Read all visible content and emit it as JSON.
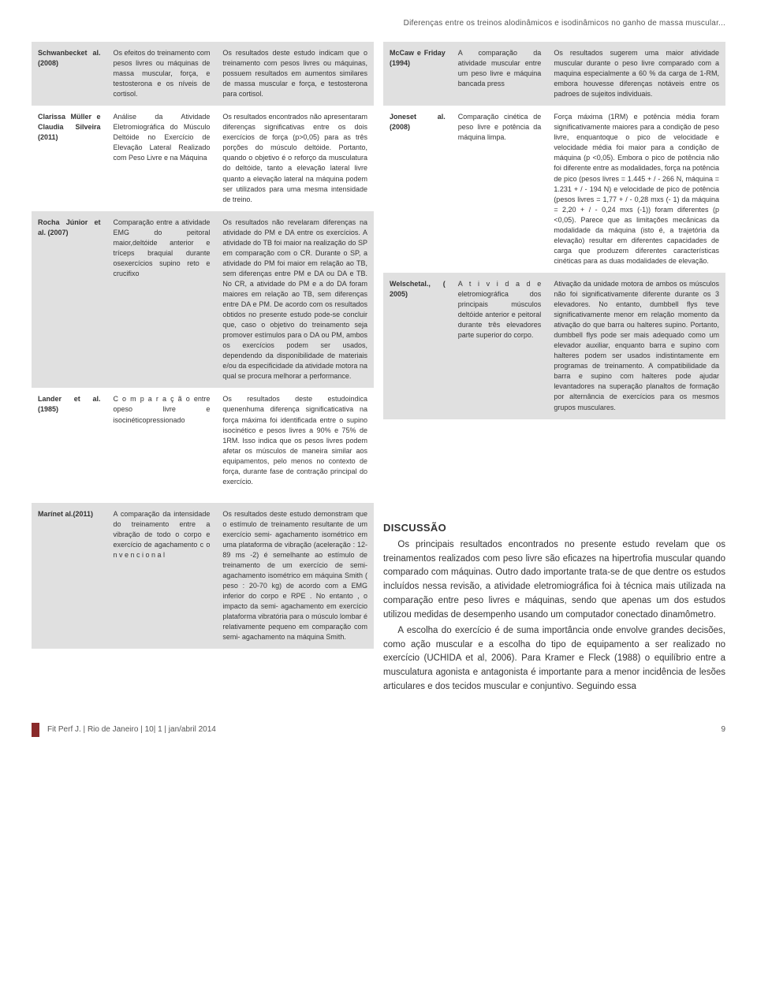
{
  "header": {
    "running_title": "Diferenças entre os treinos alodinâmicos e isodinâmicos no ganho de massa muscular..."
  },
  "left_table": [
    {
      "band": true,
      "author": "Schwanbecket al. (2008)",
      "method": "Os efeitos do treinamento com pesos livres ou máquinas de massa muscular, força, e testosterona e os níveis de cortisol.",
      "result": "Os resultados deste estudo indicam que o treinamento com pesos livres ou máquinas, possuem resultados em aumentos similares de massa muscular e força, e testosterona para cortisol."
    },
    {
      "band": false,
      "author": "Clarissa Müller e Claudia Silveira (2011)",
      "method": "Análise da Atividade Eletromiográfica do Músculo Deltóide no Exercício de Elevação Lateral Realizado com Peso Livre e na Máquina",
      "result": "Os resultados encontrados não apresentaram diferenças significativas entre os dois exercícios de força (p>0,05) para as três porções do músculo deltóide. Portanto, quando o objetivo é o reforço da musculatura do deltóide, tanto a elevação lateral livre quanto a elevação lateral na máquina podem ser utilizados para uma mesma intensidade de treino."
    },
    {
      "band": true,
      "author": "Rocha Júnior et al. (2007)",
      "method": "Comparação entre a atividade EMG do peitoral maior,deltóide anterior e tríceps braquial durante osexercícios supino reto e crucifixo",
      "result": "Os resultados não revelaram diferenças na atividade do PM e DA entre os exercícios. A atividade do TB foi maior na realização do SP em comparação com o CR. Durante o SP, a atividade do PM foi maior em relação ao TB, sem diferenças entre PM e DA ou DA e TB. No CR, a atividade do PM e a do DA foram maiores em relação ao TB, sem diferenças entre DA e PM. De acordo com os resultados obtidos no presente estudo pode-se concluir que, caso o objetivo do treinamento seja promover estímulos para o DA ou PM, ambos os exercícios podem ser usados, dependendo da disponibilidade de materiais e/ou da especificidade da atividade motora na qual se procura melhorar a performance."
    },
    {
      "band": false,
      "author": "Lander et al. (1985)",
      "method": "C o m p a r a ç ã o entre opeso livre e isocinéticopressionado",
      "result": "Os resultados deste estudoindica quenenhuma diferença significaticativa na força máxima foi identificada entre o supino isocinético e pesos livres a 90% e 75% de 1RM. Isso indica que os pesos livres podem afetar os músculos de maneira similar aos equipamentos, pelo menos no contexto de força, durante fase de contração principal do exercício."
    }
  ],
  "right_table": [
    {
      "band": true,
      "author": "McCaw e Friday (1994)",
      "method": "A comparação da atividade muscular entre um peso livre e máquina bancada press",
      "result": "Os resultados sugerem uma maior atividade muscular durante o peso livre comparado com a maquina especialmente a 60 % da carga de 1-RM, embora houvesse diferenças notáveis entre os padroes de sujeitos individuais."
    },
    {
      "band": false,
      "author": "Joneset al. (2008)",
      "method": "Comparação cinética de peso livre e potência da máquina limpa.",
      "result": "Força máxima (1RM) e potência média foram significativamente maiores para a condição de peso livre, enquantoque o pico de velocidade e velocidade média foi maior para a condição de máquina (p <0,05). Embora o pico de potência não foi diferente entre as modalidades, força na potência de pico (pesos livres = 1.445 + / - 266 N, máquina = 1.231 + / - 194 N) e velocidade de pico de potência (pesos livres = 1,77 + / - 0,28 mxs (- 1) da máquina = 2,20 + / - 0,24 mxs (-1)) foram diferentes (p <0,05). Parece que as limitações mecânicas da modalidade da máquina (isto é, a trajetória da elevação) resultar em diferentes capacidades de carga que produzem diferentes características cinéticas para as duas modalidades de elevação."
    },
    {
      "band": true,
      "author": "Welschetal., ( 2005)",
      "method": "A t i v i d a d e eletromiográfica dos principais músculos deltóide anterior e peitoral durante três elevadores parte superior do corpo.",
      "result": "Ativação da unidade motora de ambos os músculos não foi significativamente diferente durante os 3 elevadores. No entanto, dumbbell flys teve significativamente menor em relação momento da ativação do que barra ou halteres supino. Portanto, dumbbell flys pode ser mais adequado como um elevador auxiliar, enquanto barra e supino com halteres podem ser usados indistintamente em programas de treinamento. A compatibilidade da barra e supino com halteres pode ajudar levantadores na superação planaltos de formação por alternância de exercícios para os mesmos grupos musculares."
    }
  ],
  "lower_left_row": {
    "band": true,
    "author": "Marínet al.(2011)",
    "method": "A comparação da intensidade do treinamento entre a vibração de todo o corpo e exercício de agachamento c o n v e n c i o n a l",
    "result": "Os resultados deste estudo demonstram que o estímulo de treinamento resultante de um exercício semi- agachamento isométrico em uma plataforma de vibração (aceleração : 12-89 ms -2) é semelhante ao estímulo de treinamento de um exercício de semi- agachamento isométrico em máquina Smith ( peso : 20-70 kg) de acordo com a EMG inferior do corpo e RPE . No entanto , o impacto da semi- agachamento em exercício plataforma vibratória para o músculo lombar é relativamente pequeno em comparação com semi- agachamento na máquina Smith."
  },
  "discussion": {
    "heading": "DISCUSSÃO",
    "paragraphs": [
      "Os principais resultados encontrados no presente estudo revelam que os treinamentos realizados com peso livre são eficazes na hipertrofia muscular quando comparado com máquinas. Outro dado importante trata-se de que dentre os estudos incluídos nessa revisão, a atividade eletromiográfica foi à técnica mais utilizada na comparação entre peso livres e máquinas, sendo que apenas um dos estudos utilizou medidas de desempenho usando um computador conectado dinamômetro.",
      "A escolha do exercício é de suma importância onde envolve grandes decisões, como ação muscular e a escolha do tipo de equipamento a ser realizado no exercício (UCHIDA et al, 2006). Para Kramer e Fleck (1988) o equilíbrio entre a musculatura agonista e antagonista é importante para a menor incidência de lesões articulares e dos tecidos muscular e conjuntivo. Seguindo essa"
    ]
  },
  "footer": {
    "citation": "Fit Perf J. | Rio de Janeiro | 10| 1 | jan/abril 2014",
    "page": "9",
    "bar_color": "#8a2a2a"
  },
  "style": {
    "band_bg": "#e0e0e0",
    "text_color": "#333333",
    "font_size_cell": 9,
    "font_size_body": 11.5,
    "page_bg": "#ffffff"
  }
}
